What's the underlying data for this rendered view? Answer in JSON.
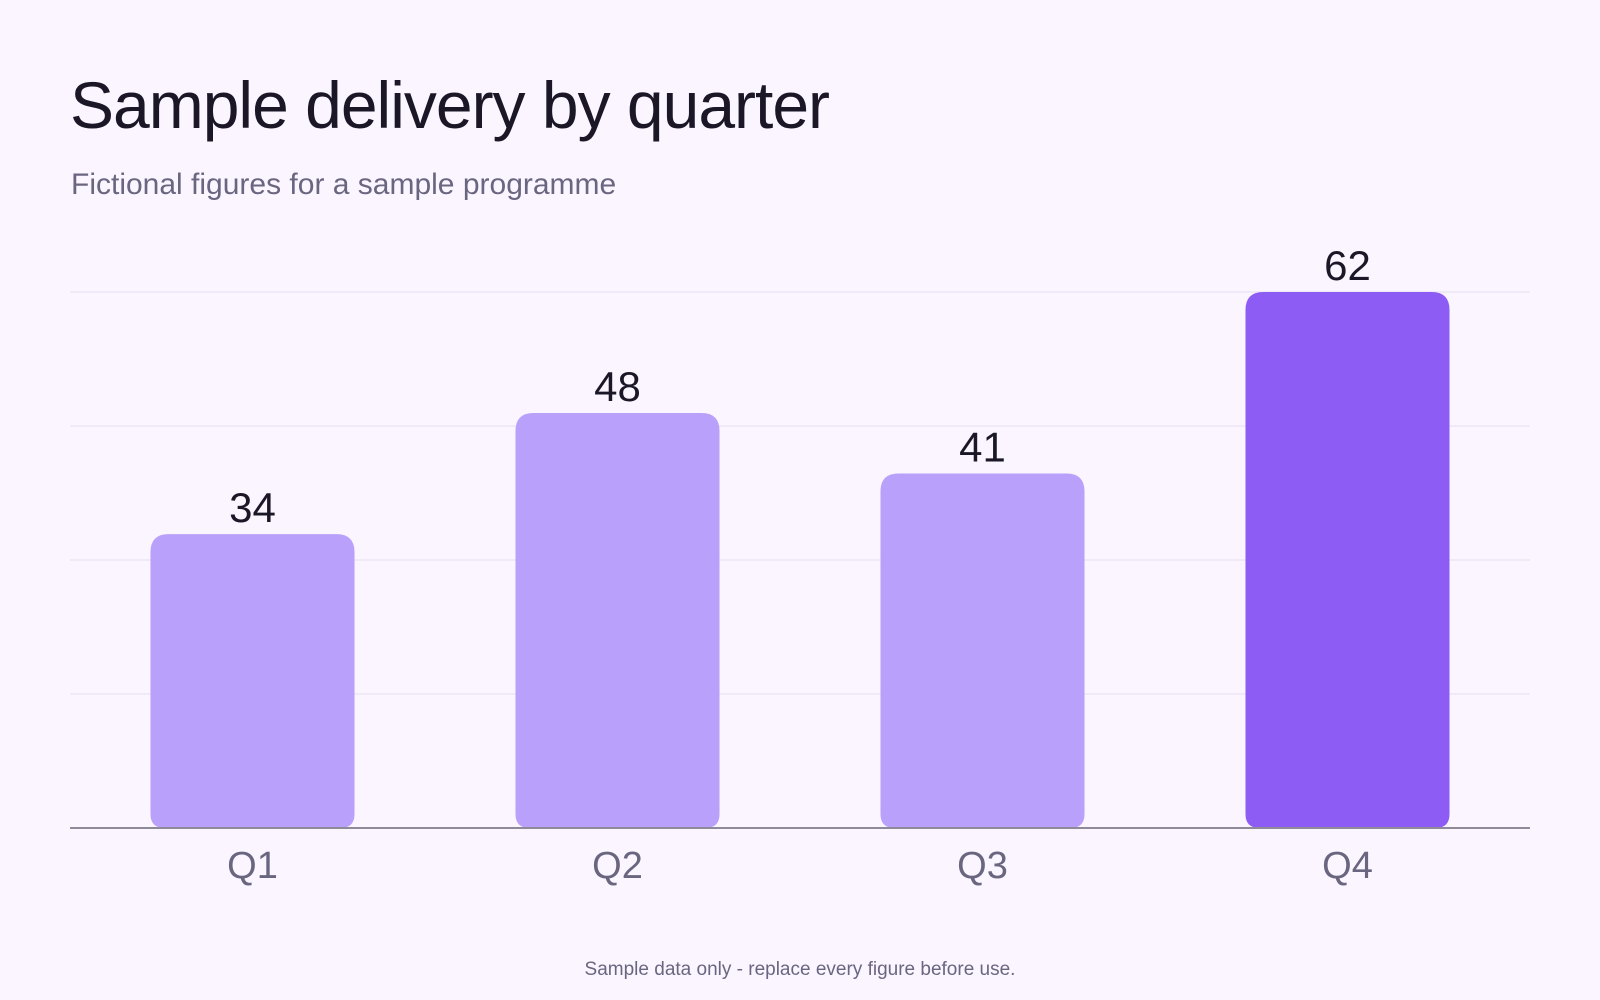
{
  "chart_data": {
    "type": "bar",
    "title": "Sample delivery by quarter",
    "subtitle": "Fictional figures for a sample programme",
    "categories": [
      "Q1",
      "Q2",
      "Q3",
      "Q4"
    ],
    "values": [
      34,
      48,
      41,
      62
    ],
    "ylim": [
      0,
      62
    ],
    "grid": true,
    "bar_colors": [
      "#B9A0FA",
      "#B9A0FA",
      "#B9A0FA",
      "#8C5CF5"
    ],
    "footnote": "Sample data only - replace every figure before use."
  }
}
